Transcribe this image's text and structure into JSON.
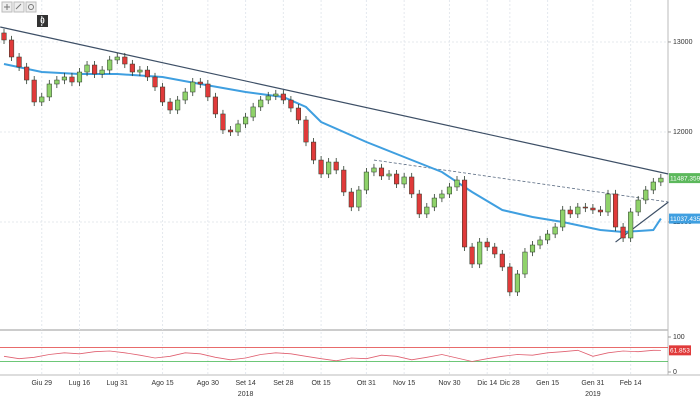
{
  "toolbar": {
    "badge": "0"
  },
  "chart_data": {
    "type": "candlestick",
    "up_color": "#8fd26a",
    "down_color": "#e03a3a",
    "outline_color": "#2b3a2b",
    "categories": [
      null,
      null,
      null,
      null,
      null,
      "Giu 29",
      null,
      null,
      null,
      null,
      "Lug 16",
      null,
      null,
      null,
      null,
      "Lug 31",
      null,
      null,
      null,
      null,
      null,
      "Ago 15",
      null,
      null,
      null,
      null,
      null,
      "Ago 30",
      null,
      null,
      null,
      null,
      "Set 14",
      null,
      null,
      null,
      null,
      "Set 28",
      null,
      null,
      null,
      null,
      "Ott 15",
      null,
      null,
      null,
      null,
      null,
      "Ott 31",
      null,
      null,
      null,
      null,
      "Nov 15",
      null,
      null,
      null,
      null,
      null,
      "Nov 30",
      null,
      null,
      null,
      null,
      "Dic 14",
      null,
      null,
      "Dic 28",
      null,
      null,
      null,
      null,
      "Gen 15",
      null,
      null,
      null,
      null,
      null,
      "Gen 31",
      null,
      null,
      null,
      null,
      "Feb 14",
      null,
      null,
      null,
      null
    ],
    "categories_year": [
      null,
      null,
      null,
      null,
      null,
      null,
      null,
      null,
      null,
      null,
      null,
      null,
      null,
      null,
      null,
      null,
      null,
      null,
      null,
      null,
      null,
      null,
      null,
      null,
      null,
      null,
      null,
      null,
      null,
      null,
      null,
      null,
      "2018",
      null,
      null,
      null,
      null,
      null,
      null,
      null,
      null,
      null,
      null,
      null,
      null,
      null,
      null,
      null,
      null,
      null,
      null,
      null,
      null,
      null,
      null,
      null,
      null,
      null,
      null,
      null,
      null,
      null,
      null,
      null,
      null,
      null,
      null,
      null,
      null,
      null,
      null,
      null,
      null,
      null,
      null,
      null,
      null,
      null,
      "2019",
      null,
      null,
      null,
      null,
      null,
      null,
      null,
      null,
      null
    ],
    "open": [
      13100,
      13022,
      12833,
      12722,
      12577,
      12333,
      12389,
      12533,
      12577,
      12611,
      12555,
      12666,
      12744,
      12644,
      12688,
      12800,
      12833,
      12755,
      12666,
      12688,
      12611,
      12500,
      12333,
      12244,
      12355,
      12444,
      12555,
      12533,
      12389,
      12200,
      12022,
      12000,
      12089,
      12166,
      12278,
      12355,
      12400,
      12422,
      12355,
      12266,
      12133,
      11888,
      11688,
      11533,
      11666,
      11577,
      11333,
      11166,
      11355,
      11555,
      11600,
      11511,
      11533,
      11422,
      11500,
      11311,
      11089,
      11166,
      11266,
      11311,
      11389,
      11466,
      10722,
      10533,
      10777,
      10722,
      10644,
      10500,
      10222,
      10422,
      10666,
      10744,
      10800,
      10866,
      10944,
      11133,
      11089,
      11166,
      11155,
      11133,
      11111,
      11311,
      10944,
      10822,
      11111,
      11244,
      11355,
      11444
    ],
    "high": [
      13145,
      13067,
      12878,
      12767,
      12622,
      12434,
      12578,
      12622,
      12656,
      12656,
      12711,
      12789,
      12789,
      12733,
      12845,
      12878,
      12878,
      12800,
      12733,
      12733,
      12656,
      12545,
      12378,
      12400,
      12489,
      12600,
      12600,
      12578,
      12434,
      12245,
      12067,
      12134,
      12211,
      12323,
      12400,
      12445,
      12467,
      12467,
      12400,
      12311,
      12178,
      11933,
      11733,
      11711,
      11711,
      11622,
      11378,
      11400,
      11600,
      11645,
      11645,
      11578,
      11578,
      11545,
      11545,
      11356,
      11211,
      11311,
      11356,
      11434,
      11511,
      11511,
      10767,
      10822,
      10822,
      10767,
      10689,
      10545,
      10467,
      10711,
      10789,
      10845,
      10911,
      10989,
      11178,
      11178,
      11211,
      11211,
      11200,
      11178,
      11356,
      11356,
      10989,
      11156,
      11289,
      11400,
      11489,
      11534
    ],
    "low": [
      12977,
      12788,
      12677,
      12532,
      12288,
      12288,
      12344,
      12488,
      12532,
      12510,
      12510,
      12621,
      12599,
      12599,
      12643,
      12755,
      12710,
      12621,
      12621,
      12566,
      12455,
      12288,
      12199,
      12199,
      12310,
      12399,
      12488,
      12344,
      12155,
      11977,
      11955,
      11955,
      12044,
      12121,
      12233,
      12310,
      12355,
      12310,
      12221,
      12088,
      11843,
      11643,
      11488,
      11488,
      11532,
      11288,
      11121,
      11121,
      11310,
      11510,
      11466,
      11466,
      11377,
      11377,
      11266,
      11044,
      11044,
      11121,
      11221,
      11266,
      11344,
      10677,
      10488,
      10488,
      10677,
      10599,
      10455,
      10177,
      10177,
      10377,
      10621,
      10699,
      10755,
      10821,
      10899,
      11044,
      11044,
      11110,
      11088,
      11066,
      11066,
      10899,
      10777,
      10777,
      11066,
      11199,
      11310,
      11399
    ],
    "close": [
      13022,
      12833,
      12722,
      12577,
      12333,
      12389,
      12533,
      12577,
      12611,
      12555,
      12666,
      12744,
      12644,
      12688,
      12800,
      12833,
      12755,
      12666,
      12688,
      12611,
      12500,
      12333,
      12244,
      12355,
      12444,
      12555,
      12533,
      12389,
      12200,
      12022,
      12000,
      12089,
      12166,
      12278,
      12355,
      12400,
      12422,
      12355,
      12266,
      12133,
      11888,
      11688,
      11533,
      11666,
      11577,
      11333,
      11166,
      11355,
      11555,
      11600,
      11511,
      11533,
      11422,
      11500,
      11311,
      11089,
      11166,
      11266,
      11311,
      11389,
      11466,
      10722,
      10533,
      10777,
      10722,
      10644,
      10500,
      10222,
      10422,
      10666,
      10744,
      10800,
      10866,
      10944,
      11133,
      11089,
      11166,
      11155,
      11133,
      11111,
      11311,
      10944,
      10822,
      11111,
      11244,
      11355,
      11444,
      11487.3591
    ],
    "ma": {
      "color": "#3f9fe0",
      "x": [
        0,
        5,
        10,
        15,
        21,
        26,
        32,
        37,
        40,
        42,
        48,
        53,
        58,
        62,
        66,
        70,
        74,
        79,
        82,
        86,
        87
      ],
      "values": [
        12755,
        12666,
        12644,
        12644,
        12611,
        12533,
        12444,
        12389,
        12277,
        12111,
        11888,
        11722,
        11555,
        11333,
        11133,
        11055,
        11000,
        10911,
        10889,
        10911,
        11037.4355
      ]
    },
    "trendlines": [
      {
        "color": "#3d4f66",
        "dashed": false,
        "x": [
          -0.5,
          88
        ],
        "values": [
          13166,
          11533
        ]
      },
      {
        "color": "#5a6b82",
        "dashed": true,
        "x": [
          49,
          88
        ],
        "values": [
          11688,
          11222
        ]
      },
      {
        "color": "#3d4f66",
        "dashed": false,
        "x": [
          81,
          88
        ],
        "values": [
          10777,
          11222
        ]
      }
    ],
    "last_color": "#5cb85c",
    "ylim": [
      9822,
      13444
    ],
    "yticks": [
      13000,
      12000,
      11000
    ],
    "grid": true,
    "rsi": {
      "color": "#e06070",
      "ylim": [
        0,
        100
      ],
      "yticks": [
        100,
        0
      ],
      "levels": [
        {
          "value": 70,
          "color": "#e03a3a"
        },
        {
          "value": 30,
          "color": "#3cb44b"
        }
      ],
      "label_color": "#e03a3a",
      "x": [
        0,
        2,
        4,
        6,
        8,
        10,
        12,
        14,
        16,
        18,
        20,
        22,
        24,
        26,
        28,
        30,
        32,
        34,
        36,
        38,
        40,
        42,
        44,
        46,
        48,
        50,
        52,
        54,
        56,
        58,
        60,
        62,
        64,
        66,
        68,
        70,
        72,
        74,
        76,
        78,
        80,
        82,
        84,
        86,
        87
      ],
      "values": [
        45,
        38,
        42,
        50,
        55,
        52,
        58,
        60,
        55,
        48,
        40,
        45,
        55,
        52,
        42,
        35,
        40,
        50,
        55,
        52,
        45,
        38,
        32,
        40,
        38,
        48,
        45,
        35,
        42,
        50,
        40,
        30,
        38,
        45,
        50,
        48,
        55,
        58,
        62,
        45,
        55,
        60,
        58,
        62,
        61.853
      ]
    }
  }
}
